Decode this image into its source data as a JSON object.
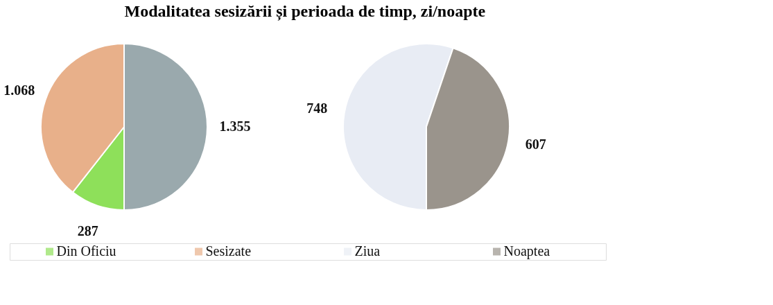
{
  "chart_data": [
    {
      "type": "pie",
      "title": "Modalitatea   sesizării și perioada de timp, zi/noapte",
      "categories": [
        "Din Oficiu",
        "Sesizate",
        null
      ],
      "values": [
        287,
        1068,
        1355
      ],
      "colors": [
        "#8ee05a",
        "#e8b08a",
        "#9aa9ad"
      ],
      "value_labels": [
        "287",
        "1.068",
        "1.355"
      ],
      "legend": "bottom"
    },
    {
      "type": "pie",
      "categories": [
        "Ziua",
        "Noaptea"
      ],
      "values": [
        748,
        607
      ],
      "colors": [
        "#e8ecf4",
        "#9a948c"
      ],
      "value_labels": [
        "748",
        "607"
      ],
      "legend": "bottom"
    }
  ]
}
